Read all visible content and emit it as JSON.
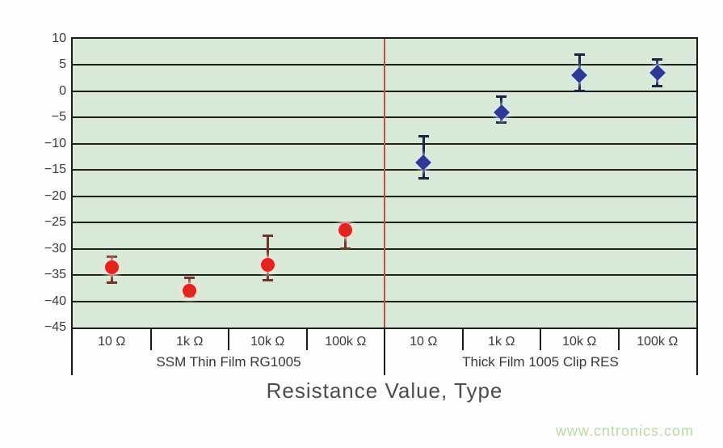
{
  "chart_data": {
    "type": "scatter",
    "title": "",
    "xlabel": "Resistance Value, Type",
    "ylabel": "",
    "ylim": [
      -45,
      10
    ],
    "yticks": [
      10,
      5,
      0,
      -5,
      -10,
      -15,
      -20,
      -25,
      -30,
      -35,
      -40,
      -45
    ],
    "grid": true,
    "legend_position": "none",
    "plot_bg_color": "#d8e9d8",
    "grid_color": "#1f1f1f",
    "divider_color": "#c0504d",
    "groups": [
      {
        "label": "SSM Thin Film RG1005",
        "marker": "circle",
        "color": "#e3231e",
        "error_color": "#6e3328",
        "categories": [
          "10 Ω",
          "1k Ω",
          "10k Ω",
          "100k Ω"
        ],
        "points": [
          {
            "category": "10 Ω",
            "value": -33.5,
            "error_high": -31.5,
            "error_low": -36.5
          },
          {
            "category": "1k Ω",
            "value": -38,
            "error_high": -35.5,
            "error_low": -39
          },
          {
            "category": "10k Ω",
            "value": -33,
            "error_high": -27.5,
            "error_low": -36
          },
          {
            "category": "100k Ω",
            "value": -26.5,
            "error_high": -25,
            "error_low": -30
          }
        ]
      },
      {
        "label": "Thick Film 1005 Clip RES",
        "marker": "diamond",
        "color": "#2d3a95",
        "error_color": "#1b2346",
        "categories": [
          "10 Ω",
          "1k Ω",
          "10k Ω",
          "100k Ω"
        ],
        "points": [
          {
            "category": "10 Ω",
            "value": -13.5,
            "error_high": -8.5,
            "error_low": -16.5
          },
          {
            "category": "1k Ω",
            "value": -4,
            "error_high": -1,
            "error_low": -6
          },
          {
            "category": "10k Ω",
            "value": 3,
            "error_high": 7,
            "error_low": 0
          },
          {
            "category": "100k Ω",
            "value": 3.5,
            "error_high": 6,
            "error_low": 1
          }
        ]
      }
    ]
  },
  "watermark": {
    "text": "www.cntronics.com",
    "color": "#b9dba6"
  }
}
